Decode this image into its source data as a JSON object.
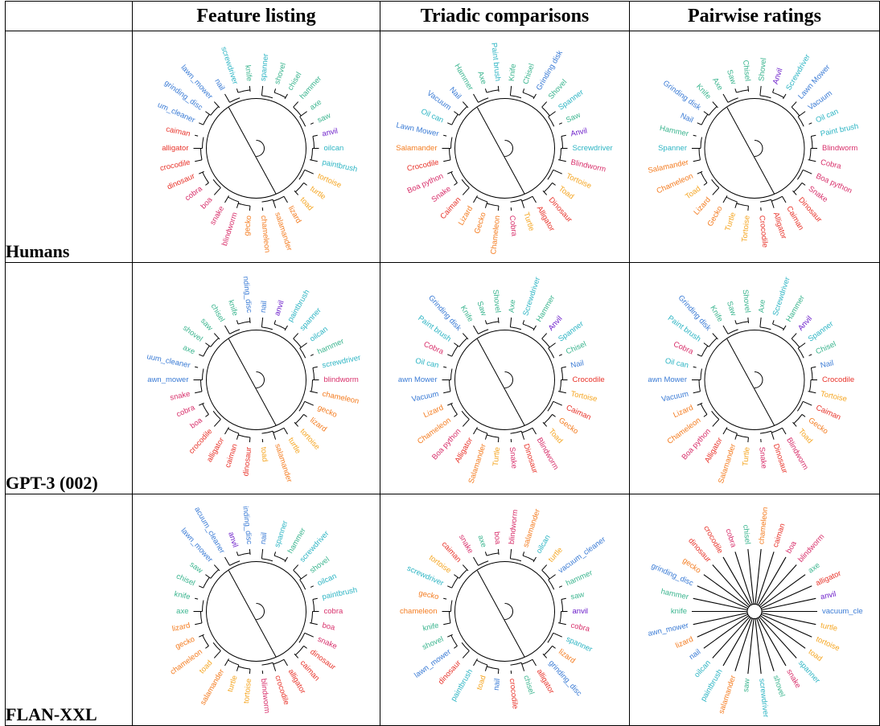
{
  "header": {
    "corner": "",
    "columns": [
      "Feature listing",
      "Triadic comparisons",
      "Pairwise ratings"
    ]
  },
  "rows": [
    {
      "label": "Humans",
      "panels": [
        {
          "labels": [
            "spanner",
            "shovel",
            "chisel",
            "hammer",
            "axe",
            "saw",
            "anvil",
            "oilcan",
            "paintbrush",
            "tortoise",
            "turtle",
            "toad",
            "lizard",
            "salamander",
            "chameleon",
            "gecko",
            "blindworm",
            "snake",
            "boa",
            "cobra",
            "dinosaur",
            "crocodile",
            "alligator",
            "caiman",
            "um_cleaner",
            "grinding_disc",
            "lawn_mower",
            "nail",
            "screwdriver",
            "knife"
          ]
        },
        {
          "labels": [
            "Knife",
            "Chisel",
            "Grinding disk",
            "Shovel",
            "Spanner",
            "Saw",
            "Anvil",
            "Screwdriver",
            "Blindworm",
            "Tortoise",
            "Toad",
            "Dinosaur",
            "Alligator",
            "Turtle",
            "Cobra",
            "Chameleon",
            "Gecko",
            "Lizard",
            "Caiman",
            "Snake",
            "Boa python",
            "Crocodile",
            "Salamander",
            "Lawn Mower",
            "Oil can",
            "Vacuum",
            "Nail",
            "Hammer",
            "Axe",
            "Paint brush"
          ]
        },
        {
          "labels": [
            "Shovel",
            "Anvil",
            "Screwdriver",
            "Lawn Mower",
            "Vacuum",
            "Oil can",
            "Paint brush",
            "Blindworm",
            "Cobra",
            "Boa python",
            "Snake",
            "Dinosaur",
            "Caiman",
            "Alligator",
            "Crocodile",
            "Tortoise",
            "Turtle",
            "Gecko",
            "Lizard",
            "Toad",
            "Chameleon",
            "Salamander",
            "Spanner",
            "Hammer",
            "Nail",
            "Grinding disk",
            "Knife",
            "Axe",
            "Saw",
            "Chisel"
          ]
        }
      ]
    },
    {
      "label": "GPT-3 (002)",
      "panels": [
        {
          "labels": [
            "nail",
            "anvil",
            "paintbrush",
            "spanner",
            "oilcan",
            "hammer",
            "screwdriver",
            "blindworm",
            "chameleon",
            "gecko",
            "lizard",
            "tortoise",
            "turtle",
            "salamander",
            "toad",
            "dinosaur",
            "caiman",
            "alligator",
            "crocodile",
            "boa",
            "cobra",
            "snake",
            "awn_mower",
            "uum_cleaner",
            "axe",
            "shovel",
            "saw",
            "chisel",
            "knife",
            "nding_disc"
          ]
        },
        {
          "labels": [
            "Axe",
            "Screwdriver",
            "Hammer",
            "Anvil",
            "Spanner",
            "Chisel",
            "Nail",
            "Crocodile",
            "Tortoise",
            "Caiman",
            "Gecko",
            "Toad",
            "Blindworm",
            "Dinosaur",
            "Snake",
            "Turtle",
            "Salamander",
            "Alligator",
            "Boa python",
            "Chameleon",
            "Lizard",
            "Vacuum",
            "awn Mower",
            "Oil can",
            "Cobra",
            "Paint brush",
            "Grinding disk",
            "Knife",
            "Saw",
            "Shovel"
          ]
        },
        {
          "labels": [
            "Axe",
            "Screwdriver",
            "Hammer",
            "Anvil",
            "Spanner",
            "Chisel",
            "Nail",
            "Crocodile",
            "Tortoise",
            "Caiman",
            "Gecko",
            "Toad",
            "Blindworm",
            "Dinosaur",
            "Snake",
            "Turtle",
            "Salamander",
            "Alligator",
            "Boa python",
            "Chameleon",
            "Lizard",
            "Vacuum",
            "awn Mower",
            "Oil can",
            "Cobra",
            "Paint brush",
            "Grinding disk",
            "Knife",
            "Saw",
            "Shovel"
          ]
        }
      ]
    },
    {
      "label": "FLAN-XXL",
      "panels": [
        {
          "labels": [
            "nail",
            "spanner",
            "hammer",
            "screwdriver",
            "shovel",
            "oilcan",
            "paintbrush",
            "cobra",
            "boa",
            "snake",
            "dinosaur",
            "caiman",
            "alligator",
            "crocodile",
            "blindworm",
            "tortoise",
            "turtle",
            "salamander",
            "toad",
            "chameleon",
            "gecko",
            "lizard",
            "axe",
            "knife",
            "chisel",
            "saw",
            "lawn_mower",
            "acuum_cleaner",
            "anvil",
            "inding_disc"
          ]
        },
        {
          "labels": [
            "blindworm",
            "salamander",
            "oilcan",
            "turtle",
            "vacuum_cleaner",
            "hammer",
            "saw",
            "anvil",
            "cobra",
            "spanner",
            "lizard",
            "grinding_disc",
            "alligator",
            "chisel",
            "crocodile",
            "nail",
            "toad",
            "paintbrush",
            "dinosaur",
            "lawn_mower",
            "shovel",
            "knife",
            "chameleon",
            "gecko",
            "screwdriver",
            "tortoise",
            "caiman",
            "snake",
            "axe",
            "boa"
          ]
        },
        {
          "labels": [
            "chameleon",
            "caiman",
            "boa",
            "blindworm",
            "axe",
            "alligator",
            "anvil",
            "vacuum_cle",
            "turtle",
            "tortoise",
            "toad",
            "spanner",
            "snake",
            "shovel",
            "screwdriver",
            "saw",
            "salamander",
            "paintbrush",
            "oilcan",
            "nail",
            "lizard",
            "awn_mower",
            "knife",
            "hammer",
            "grinding_disc",
            "gecko",
            "dinosaur",
            "crocodile",
            "cobra",
            "chisel"
          ]
        }
      ]
    }
  ],
  "colors": {
    "axe": "#3bb58f",
    "saw": "#3bb58f",
    "chisel": "#3bb58f",
    "shovel": "#3bb58f",
    "knife": "#3bb58f",
    "hammer": "#3bb58f",
    "spanner": "#2eb5c4",
    "oilcan": "#2eb5c4",
    "oil can": "#2eb5c4",
    "paintbrush": "#2eb5c4",
    "paint brush": "#2eb5c4",
    "screwdriver": "#2eb5c4",
    "nail": "#3a7bd5",
    "lawn_mower": "#3a7bd5",
    "lawn mower": "#3a7bd5",
    "awn_mower": "#3a7bd5",
    "awn mower": "#3a7bd5",
    "vacuum": "#3a7bd5",
    "vacuum_cleaner": "#3a7bd5",
    "vacuum_cle": "#3a7bd5",
    "um_cleaner": "#3a7bd5",
    "uum_cleaner": "#3a7bd5",
    "acuum_cleaner": "#3a7bd5",
    "grinding_disc": "#3a7bd5",
    "grinding disk": "#3a7bd5",
    "nding_disc": "#3a7bd5",
    "inding_disc": "#3a7bd5",
    "anvil": "#6a1bc9",
    "tortoise": "#f5a623",
    "turtle": "#f5a623",
    "toad": "#f5a623",
    "lizard": "#f47c20",
    "salamander": "#f47c20",
    "chameleon": "#f47c20",
    "gecko": "#f47c20",
    "caiman": "#e8332a",
    "alligator": "#e8332a",
    "crocodile": "#e8332a",
    "dinosaur": "#e8332a",
    "cobra": "#d8306b",
    "boa": "#d8306b",
    "boa python": "#d8306b",
    "snake": "#d8306b",
    "blindworm": "#d8306b"
  }
}
